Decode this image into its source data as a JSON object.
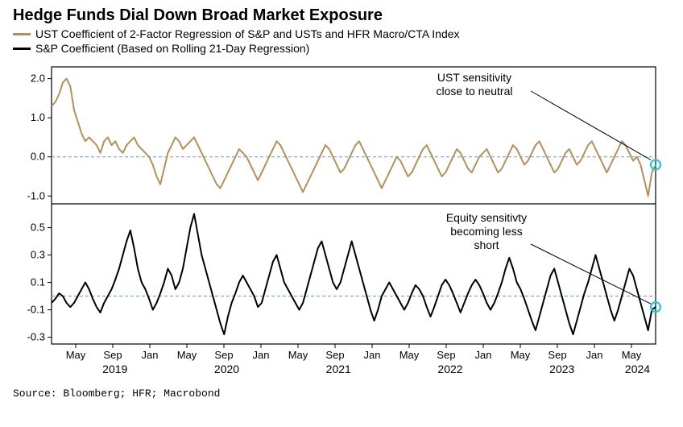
{
  "title": "Hedge Funds Dial Down Broad Market Exposure",
  "legend": {
    "ust": {
      "label": "UST Coefficient of 2-Factor Regression of S&P and USTs and HFR Macro/CTA Index",
      "color": "#b5905a"
    },
    "sp": {
      "label": "S&P Coefficient (Based on Rolling 21-Day Regression)",
      "color": "#000000"
    }
  },
  "chart": {
    "background": "#ffffff",
    "border_color": "#000000",
    "zero_line_color": "#6699cc",
    "highlight_circle_color": "#1fc9e3",
    "x_axis": {
      "month_labels": [
        "May",
        "Sep",
        "Jan",
        "May",
        "Sep",
        "Jan",
        "May",
        "Sep",
        "Jan",
        "May",
        "Sep",
        "Jan",
        "May",
        "Sep",
        "Jan",
        "May"
      ],
      "year_labels": [
        "2019",
        "2020",
        "2021",
        "2022",
        "2023",
        "2024"
      ],
      "n_months": 16
    },
    "top_panel": {
      "yticks": [
        -1.0,
        0.0,
        1.0,
        2.0
      ],
      "ylim": [
        -1.2,
        2.3
      ],
      "annotation_line1": "UST sensitivity",
      "annotation_line2": "close to neutral",
      "line_color": "#b5905a",
      "line_width": 2,
      "series": [
        1.3,
        1.4,
        1.6,
        1.9,
        2.0,
        1.8,
        1.2,
        0.9,
        0.6,
        0.4,
        0.5,
        0.4,
        0.3,
        0.1,
        0.4,
        0.5,
        0.3,
        0.4,
        0.2,
        0.1,
        0.3,
        0.4,
        0.5,
        0.3,
        0.2,
        0.1,
        0.0,
        -0.2,
        -0.5,
        -0.7,
        -0.3,
        0.1,
        0.3,
        0.5,
        0.4,
        0.2,
        0.3,
        0.4,
        0.5,
        0.3,
        0.1,
        -0.1,
        -0.3,
        -0.5,
        -0.7,
        -0.8,
        -0.6,
        -0.4,
        -0.2,
        0.0,
        0.2,
        0.1,
        0.0,
        -0.2,
        -0.4,
        -0.6,
        -0.4,
        -0.2,
        0.0,
        0.2,
        0.4,
        0.3,
        0.1,
        -0.1,
        -0.3,
        -0.5,
        -0.7,
        -0.9,
        -0.7,
        -0.5,
        -0.3,
        -0.1,
        0.1,
        0.3,
        0.2,
        0.0,
        -0.2,
        -0.4,
        -0.3,
        -0.1,
        0.1,
        0.3,
        0.4,
        0.2,
        0.0,
        -0.2,
        -0.4,
        -0.6,
        -0.8,
        -0.6,
        -0.4,
        -0.2,
        0.0,
        -0.1,
        -0.3,
        -0.5,
        -0.4,
        -0.2,
        0.0,
        0.2,
        0.3,
        0.1,
        -0.1,
        -0.3,
        -0.5,
        -0.4,
        -0.2,
        0.0,
        0.2,
        0.1,
        -0.1,
        -0.3,
        -0.4,
        -0.2,
        0.0,
        0.1,
        0.2,
        0.0,
        -0.2,
        -0.4,
        -0.3,
        -0.1,
        0.1,
        0.3,
        0.2,
        0.0,
        -0.2,
        -0.1,
        0.1,
        0.3,
        0.4,
        0.2,
        0.0,
        -0.2,
        -0.4,
        -0.3,
        -0.1,
        0.1,
        0.2,
        0.0,
        -0.2,
        -0.1,
        0.1,
        0.3,
        0.4,
        0.2,
        0.0,
        -0.2,
        -0.4,
        -0.2,
        0.0,
        0.2,
        0.4,
        0.3,
        0.1,
        -0.1,
        0.0,
        -0.2,
        -0.6,
        -1.0,
        -0.4,
        -0.2
      ]
    },
    "bottom_panel": {
      "yticks": [
        -0.3,
        -0.1,
        0.1,
        0.3,
        0.5
      ],
      "ylim": [
        -0.35,
        0.65
      ],
      "annotation_line1": "Equity sensitivty",
      "annotation_line2": "becoming less",
      "annotation_line3": "short",
      "line_color": "#000000",
      "line_width": 2,
      "series": [
        -0.05,
        -0.02,
        0.02,
        0.0,
        -0.05,
        -0.08,
        -0.05,
        0.0,
        0.05,
        0.1,
        0.05,
        -0.02,
        -0.08,
        -0.12,
        -0.05,
        0.0,
        0.05,
        0.12,
        0.2,
        0.3,
        0.4,
        0.48,
        0.35,
        0.2,
        0.1,
        0.05,
        -0.02,
        -0.1,
        -0.05,
        0.02,
        0.1,
        0.2,
        0.15,
        0.05,
        0.1,
        0.2,
        0.35,
        0.5,
        0.6,
        0.45,
        0.3,
        0.2,
        0.1,
        0.0,
        -0.1,
        -0.2,
        -0.28,
        -0.15,
        -0.05,
        0.02,
        0.1,
        0.15,
        0.1,
        0.05,
        0.0,
        -0.08,
        -0.05,
        0.05,
        0.15,
        0.25,
        0.3,
        0.2,
        0.1,
        0.05,
        0.0,
        -0.05,
        -0.1,
        -0.05,
        0.05,
        0.15,
        0.25,
        0.35,
        0.4,
        0.3,
        0.2,
        0.1,
        0.05,
        0.1,
        0.2,
        0.3,
        0.4,
        0.3,
        0.2,
        0.1,
        0.0,
        -0.1,
        -0.18,
        -0.1,
        0.0,
        0.05,
        0.1,
        0.05,
        0.0,
        -0.05,
        -0.1,
        -0.05,
        0.02,
        0.08,
        0.05,
        0.0,
        -0.08,
        -0.15,
        -0.08,
        0.0,
        0.08,
        0.12,
        0.08,
        0.02,
        -0.05,
        -0.12,
        -0.05,
        0.02,
        0.08,
        0.12,
        0.08,
        0.02,
        -0.05,
        -0.1,
        -0.05,
        0.02,
        0.1,
        0.2,
        0.28,
        0.2,
        0.1,
        0.05,
        -0.02,
        -0.1,
        -0.18,
        -0.25,
        -0.15,
        -0.05,
        0.05,
        0.15,
        0.2,
        0.1,
        0.0,
        -0.1,
        -0.2,
        -0.28,
        -0.18,
        -0.08,
        0.02,
        0.1,
        0.2,
        0.3,
        0.2,
        0.1,
        0.0,
        -0.1,
        -0.18,
        -0.1,
        0.0,
        0.1,
        0.2,
        0.15,
        0.05,
        -0.05,
        -0.15,
        -0.25,
        -0.1,
        -0.08
      ]
    }
  },
  "source": "Source: Bloomberg; HFR; Macrobond"
}
